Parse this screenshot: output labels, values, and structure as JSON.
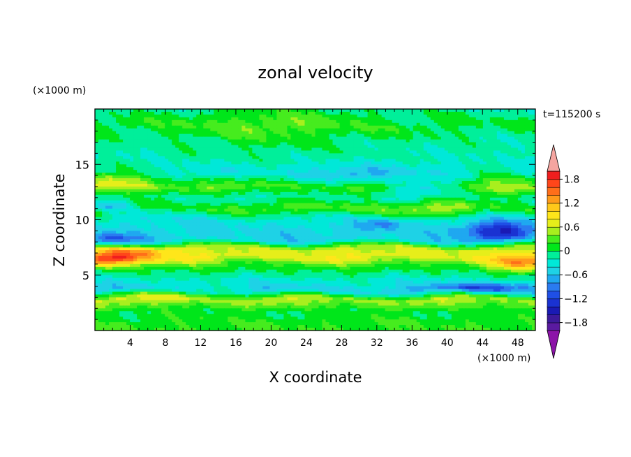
{
  "chart_data": {
    "type": "heatmap",
    "title": "zonal velocity",
    "xlabel": "X coordinate",
    "ylabel": "Z coordinate",
    "x_unit": "(×1000 m)",
    "y_unit": "(×1000 m)",
    "time_label": "t=115200 s",
    "xlim": [
      0,
      50
    ],
    "ylim": [
      0,
      20
    ],
    "x_ticks": [
      4,
      8,
      12,
      16,
      20,
      24,
      28,
      32,
      36,
      40,
      44,
      48
    ],
    "y_ticks": [
      5,
      10,
      15
    ],
    "grid": false,
    "legend": "colorbar-right",
    "colorbar": {
      "levels": [
        -2.0,
        -1.8,
        -1.6,
        -1.4,
        -1.2,
        -1.0,
        -0.8,
        -0.6,
        -0.4,
        -0.2,
        0,
        0.2,
        0.4,
        0.6,
        0.8,
        1.0,
        1.2,
        1.4,
        1.6,
        1.8,
        2.0
      ],
      "tick_labels": [
        "1.8",
        "1.2",
        "0.6",
        "0",
        "−0.6",
        "−1.2",
        "−1.8"
      ],
      "colors": [
        "#5a1aa0",
        "#3c1a9b",
        "#1a1ab4",
        "#1a32d2",
        "#1f4fe6",
        "#2a7bf0",
        "#1fa8f0",
        "#1ed2e6",
        "#00e8d8",
        "#00ef9a",
        "#00e61a",
        "#46ec1e",
        "#a8ef1e",
        "#e6ee1a",
        "#ffe61a",
        "#ffc81a",
        "#ff9a1a",
        "#ff6e1a",
        "#ff461a",
        "#f01e1e"
      ],
      "over_color": "#f5a5a0",
      "under_color": "#8c14a8"
    },
    "z_profile": [
      {
        "z": 0.0,
        "u": 0.2
      },
      {
        "z": 0.8,
        "u": 0.15
      },
      {
        "z": 1.7,
        "u": 0.05
      },
      {
        "z": 2.8,
        "u": 0.55
      },
      {
        "z": 3.6,
        "u": -0.55
      },
      {
        "z": 4.4,
        "u": -0.3
      },
      {
        "z": 5.2,
        "u": -0.05
      },
      {
        "z": 5.9,
        "u": 0.2
      },
      {
        "z": 6.6,
        "u": 0.75
      },
      {
        "z": 7.4,
        "u": 0.6
      },
      {
        "z": 8.2,
        "u": -0.5
      },
      {
        "z": 9.0,
        "u": -0.45
      },
      {
        "z": 10.0,
        "u": -0.35
      },
      {
        "z": 11.0,
        "u": 0.05
      },
      {
        "z": 12.0,
        "u": -0.2
      },
      {
        "z": 13.0,
        "u": 0.3
      },
      {
        "z": 14.2,
        "u": -0.35
      },
      {
        "z": 15.5,
        "u": -0.2
      },
      {
        "z": 17.0,
        "u": -0.15
      },
      {
        "z": 18.5,
        "u": 0.05
      },
      {
        "z": 20.0,
        "u": -0.15
      }
    ],
    "anomalies": [
      {
        "x": 1.0,
        "z": 6.3,
        "u": 1.2,
        "rx": 3.5,
        "rz": 0.6
      },
      {
        "x": 4.5,
        "z": 7.0,
        "u": 0.7,
        "rx": 4.0,
        "rz": 0.6
      },
      {
        "x": 49.0,
        "z": 6.0,
        "u": 1.1,
        "rx": 3.5,
        "rz": 0.7
      },
      {
        "x": 2.0,
        "z": 8.3,
        "u": -0.6,
        "rx": 3.0,
        "rz": 0.5
      },
      {
        "x": 46.0,
        "z": 9.0,
        "u": -1.0,
        "rx": 4.0,
        "rz": 0.9
      },
      {
        "x": 45.0,
        "z": 3.9,
        "u": -0.7,
        "rx": 6.0,
        "rz": 0.4
      },
      {
        "x": 37.0,
        "z": 13.0,
        "u": -0.6,
        "rx": 4.0,
        "rz": 0.7
      },
      {
        "x": 32.5,
        "z": 9.6,
        "u": -0.5,
        "rx": 2.5,
        "rz": 0.5
      },
      {
        "x": 20.0,
        "z": 18.5,
        "u": 0.3,
        "rx": 12.0,
        "rz": 2.5
      },
      {
        "x": 2.0,
        "z": 13.5,
        "u": 0.55,
        "rx": 6.0,
        "rz": 1.2
      },
      {
        "x": 46.0,
        "z": 13.5,
        "u": 0.4,
        "rx": 4.0,
        "rz": 1.2
      },
      {
        "x": 40.0,
        "z": 11.0,
        "u": 0.45,
        "rx": 5.0,
        "rz": 0.8
      },
      {
        "x": 25.0,
        "z": 11.0,
        "u": 0.25,
        "rx": 12.0,
        "rz": 0.8
      },
      {
        "x": 10.0,
        "z": 3.3,
        "u": 0.4,
        "rx": 8.0,
        "rz": 0.5
      },
      {
        "x": 2.0,
        "z": 11.2,
        "u": -0.6,
        "rx": 2.0,
        "rz": 0.4
      },
      {
        "x": 30.0,
        "z": 14.0,
        "u": -0.3,
        "rx": 8.0,
        "rz": 0.8
      }
    ]
  }
}
